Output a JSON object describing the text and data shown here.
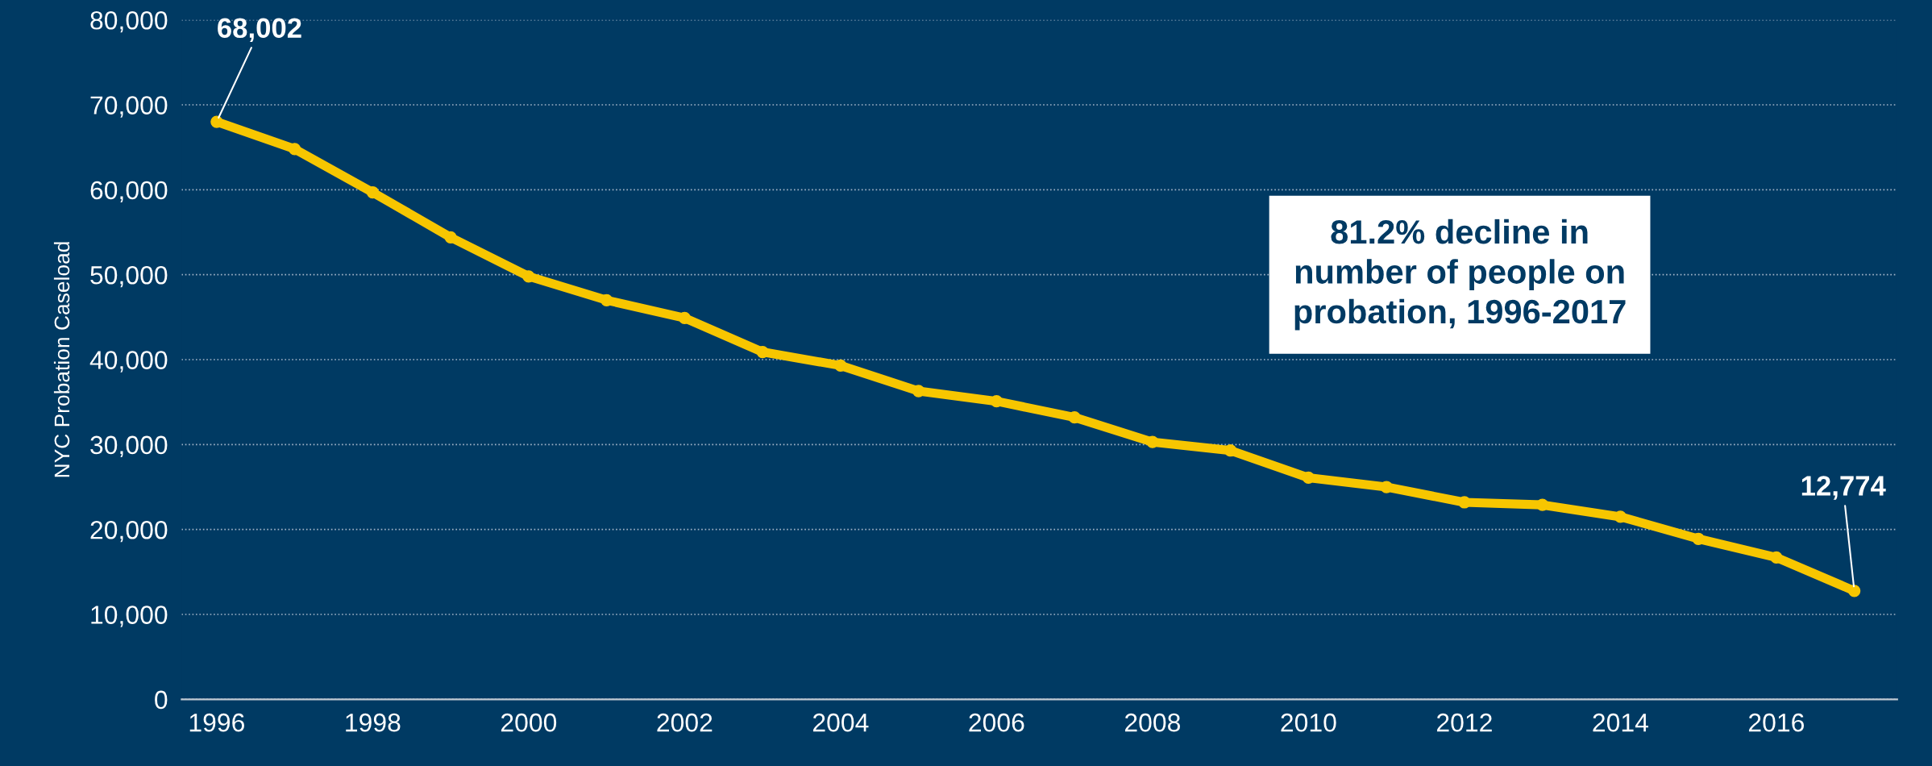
{
  "chart_data": {
    "type": "line",
    "ylabel": "NYC Probation Caseload",
    "x": [
      1996,
      1997,
      1998,
      1999,
      2000,
      2001,
      2002,
      2003,
      2004,
      2005,
      2006,
      2007,
      2008,
      2009,
      2010,
      2011,
      2012,
      2013,
      2014,
      2015,
      2016,
      2017
    ],
    "series": [
      {
        "color": "#f7c600",
        "values": [
          68002,
          64800,
          59700,
          54400,
          49800,
          47000,
          44900,
          40900,
          39300,
          36300,
          35100,
          33200,
          30300,
          29300,
          26100,
          25000,
          23200,
          22900,
          21500,
          18900,
          16700,
          12774
        ]
      }
    ],
    "xlim": [
      1995.55,
      2017.55
    ],
    "xticks": [
      1996,
      1998,
      2000,
      2002,
      2004,
      2006,
      2008,
      2010,
      2012,
      2014,
      2016
    ],
    "ylim": [
      0,
      80000
    ],
    "yticks": [
      {
        "value": 0,
        "label": "0"
      },
      {
        "value": 10000,
        "label": "10,000"
      },
      {
        "value": 20000,
        "label": "20,000"
      },
      {
        "value": 30000,
        "label": "30,000"
      },
      {
        "value": 40000,
        "label": "40,000"
      },
      {
        "value": 50000,
        "label": "50,000"
      },
      {
        "value": 60000,
        "label": "60,000"
      },
      {
        "value": 70000,
        "label": "70,000"
      },
      {
        "value": 80000,
        "label": "80,000"
      }
    ],
    "grid": "y",
    "marker": "circle",
    "line_style": "solid",
    "annotations": [
      {
        "text": "68,002",
        "x": 1996,
        "y": 68002
      },
      {
        "text": "12,774",
        "x": 2017,
        "y": 12774
      },
      "81.2% decline in\nnumber of people on\nprobation, 1996-2017"
    ]
  }
}
